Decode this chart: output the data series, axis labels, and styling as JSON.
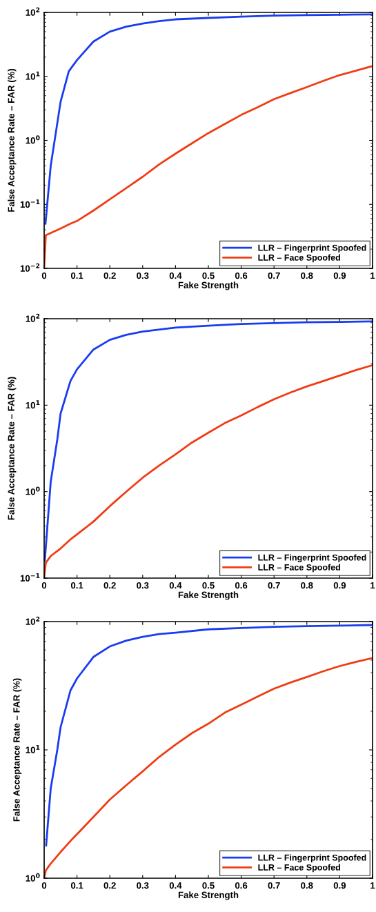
{
  "chart_data": [
    {
      "type": "line",
      "xlabel": "Fake Strength",
      "ylabel": "False Acceptance Rate – FAR (%)",
      "log": "y",
      "legend": "bottom right",
      "grid": false,
      "xlim": [
        0,
        1
      ],
      "xticks": [
        0,
        0.1,
        0.2,
        0.3,
        0.4,
        0.5,
        0.6,
        0.7,
        0.8,
        0.9,
        1
      ],
      "ylim": [
        0.01,
        100
      ],
      "yticks": [
        {
          "value": 0.01,
          "label": "10$^{−2}$"
        },
        {
          "value": 0.1,
          "label": "10$^{−1}$"
        },
        {
          "value": 1,
          "label": "10$^{0}$"
        },
        {
          "value": 10,
          "label": "10$^{1}$"
        },
        {
          "value": 100,
          "label": "10$^{2}$"
        }
      ],
      "series": [
        {
          "name": "LLR – Fingerprint Spoofed",
          "color": "#1a3cf0",
          "x": [
            0.004,
            0.02,
            0.05,
            0.075,
            0.1,
            0.15,
            0.2,
            0.25,
            0.3,
            0.35,
            0.4,
            0.5,
            0.6,
            0.7,
            0.8,
            0.9,
            1
          ],
          "values": [
            0.05,
            0.4,
            4,
            12,
            18,
            35,
            50,
            60,
            67,
            73,
            78,
            82,
            86,
            89,
            91,
            92,
            93
          ]
        },
        {
          "name": "LLR – Face Spoofed",
          "color": "#f03c14",
          "x": [
            0,
            0.005,
            0.05,
            0.08,
            0.1,
            0.15,
            0.2,
            0.25,
            0.3,
            0.35,
            0.4,
            0.45,
            0.5,
            0.55,
            0.6,
            0.65,
            0.7,
            0.75,
            0.8,
            0.85,
            0.9,
            0.95,
            1
          ],
          "values": [
            0.01,
            0.033,
            0.042,
            0.05,
            0.055,
            0.08,
            0.12,
            0.18,
            0.27,
            0.42,
            0.62,
            0.9,
            1.3,
            1.8,
            2.5,
            3.3,
            4.4,
            5.5,
            6.8,
            8.5,
            10.5,
            12.3,
            14.5
          ]
        }
      ]
    },
    {
      "type": "line",
      "xlabel": "Fake Strength",
      "ylabel": "False Acceptance Rate – FAR (%)",
      "log": "y",
      "legend": "bottom right",
      "grid": false,
      "xlim": [
        0,
        1
      ],
      "xticks": [
        0,
        0.1,
        0.2,
        0.3,
        0.4,
        0.5,
        0.6,
        0.7,
        0.8,
        0.9,
        1
      ],
      "ylim": [
        0.1,
        100
      ],
      "yticks": [
        {
          "value": 0.1,
          "label": "10$^{−1}$"
        },
        {
          "value": 1,
          "label": "10$^{0}$"
        },
        {
          "value": 10,
          "label": "10$^{1}$"
        },
        {
          "value": 100,
          "label": "10$^{2}$"
        }
      ],
      "series": [
        {
          "name": "LLR – Fingerprint Spoofed",
          "color": "#1a3cf0",
          "x": [
            0.002,
            0.02,
            0.04,
            0.05,
            0.08,
            0.1,
            0.15,
            0.2,
            0.25,
            0.3,
            0.4,
            0.5,
            0.6,
            0.7,
            0.8,
            0.9,
            1
          ],
          "values": [
            0.16,
            1.3,
            4,
            8,
            19,
            26,
            44,
            57,
            65,
            71,
            79,
            83,
            87,
            89,
            91,
            92,
            93
          ]
        },
        {
          "name": "LLR – Face Spoofed",
          "color": "#f03c14",
          "x": [
            0,
            0.005,
            0.02,
            0.05,
            0.08,
            0.1,
            0.15,
            0.2,
            0.25,
            0.3,
            0.35,
            0.4,
            0.45,
            0.5,
            0.55,
            0.6,
            0.65,
            0.7,
            0.75,
            0.8,
            0.85,
            0.9,
            0.95,
            1
          ],
          "values": [
            0.1,
            0.15,
            0.18,
            0.22,
            0.28,
            0.32,
            0.45,
            0.68,
            1.0,
            1.45,
            2.0,
            2.7,
            3.7,
            4.8,
            6.2,
            7.6,
            9.5,
            11.7,
            14,
            16.5,
            19,
            22,
            25.5,
            29
          ]
        }
      ]
    },
    {
      "type": "line",
      "xlabel": "Fake Strength",
      "ylabel": "False Acceptance Rate – FAR (%)",
      "log": "y",
      "legend": "bottom right",
      "grid": false,
      "xlim": [
        0,
        1
      ],
      "xticks": [
        0,
        0.1,
        0.2,
        0.3,
        0.4,
        0.5,
        0.6,
        0.7,
        0.8,
        0.9,
        1
      ],
      "ylim": [
        1,
        100
      ],
      "yticks": [
        {
          "value": 1,
          "label": "10$^{0}$"
        },
        {
          "value": 10,
          "label": "10$^{1}$"
        },
        {
          "value": 100,
          "label": "10$^{2}$"
        }
      ],
      "series": [
        {
          "name": "LLR – Fingerprint Spoofed",
          "color": "#1a3cf0",
          "x": [
            0.006,
            0.02,
            0.04,
            0.05,
            0.08,
            0.1,
            0.15,
            0.2,
            0.25,
            0.3,
            0.35,
            0.4,
            0.5,
            0.6,
            0.7,
            0.8,
            0.9,
            1
          ],
          "values": [
            1.8,
            5,
            10,
            15,
            29,
            36,
            53,
            64,
            71,
            76,
            80,
            82,
            87,
            89,
            91,
            92,
            93,
            94
          ]
        },
        {
          "name": "LLR – Face Spoofed",
          "color": "#f03c14",
          "x": [
            0,
            0.005,
            0.02,
            0.05,
            0.08,
            0.1,
            0.15,
            0.2,
            0.25,
            0.3,
            0.35,
            0.4,
            0.45,
            0.5,
            0.55,
            0.6,
            0.65,
            0.7,
            0.75,
            0.8,
            0.85,
            0.9,
            0.95,
            1
          ],
          "values": [
            1,
            1.15,
            1.3,
            1.6,
            1.95,
            2.2,
            3,
            4.1,
            5.3,
            6.8,
            8.8,
            11,
            13.5,
            16,
            19.5,
            22.5,
            26,
            30,
            33.5,
            37,
            41,
            45,
            48.5,
            52
          ]
        }
      ]
    }
  ]
}
